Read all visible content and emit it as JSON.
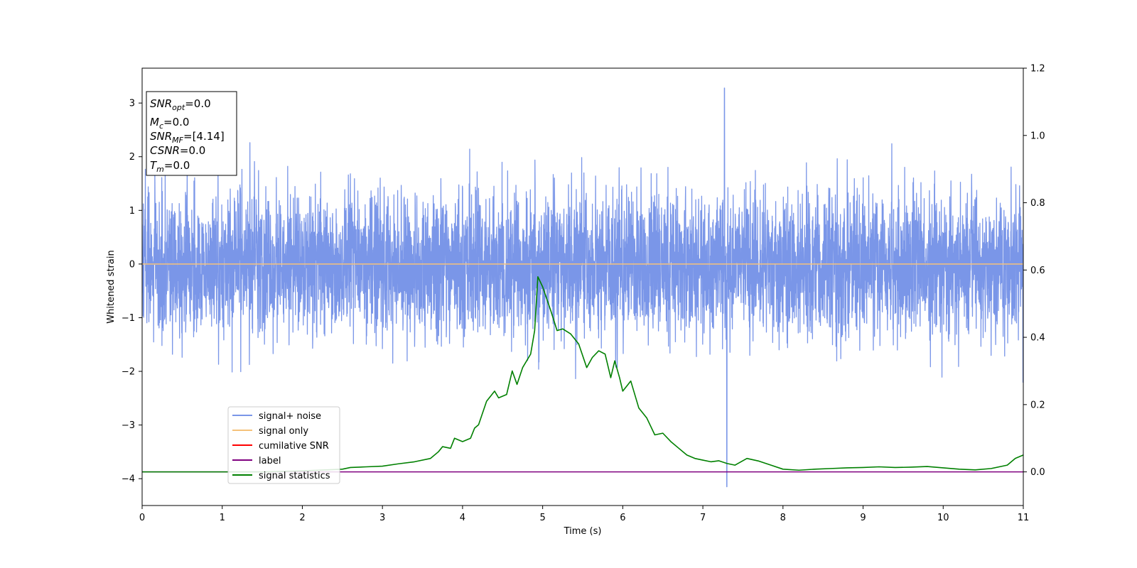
{
  "chart_data": {
    "type": "line",
    "xlabel": "Time (s)",
    "ylabel": "Whitened strain",
    "xlim": [
      0,
      11
    ],
    "ylim": [
      -4.5,
      3.65
    ],
    "y2lim": [
      -0.1,
      1.2
    ],
    "x_ticks": [
      "0",
      "1",
      "2",
      "3",
      "4",
      "5",
      "6",
      "7",
      "8",
      "9",
      "10",
      "11"
    ],
    "y_ticks": [
      "−4",
      "−3",
      "−2",
      "−1",
      "0",
      "1",
      "2",
      "3"
    ],
    "y2_ticks": [
      "0.0",
      "0.2",
      "0.4",
      "0.6",
      "0.8",
      "1.0",
      "1.2"
    ],
    "info_box": {
      "snr_opt": {
        "main": "SNR",
        "sub": "opt",
        "value": "=0.0"
      },
      "mc": {
        "main": "M",
        "sub": "c",
        "value": "=0.0"
      },
      "snr_mf": {
        "main": "SNR",
        "sub": "MF",
        "value": "=[4.14]"
      },
      "csnr": {
        "main": "CSNR",
        "value": "=0.0"
      },
      "tm": {
        "main": "T",
        "sub": "m",
        "value": "=0.0"
      }
    },
    "legend_position": "lower-left",
    "series": [
      {
        "name": "signal+ noise",
        "axis": "left",
        "color": "#7a96e8",
        "description": "dense whitened noise trace, roughly ±1.7 typical amplitude",
        "envelope": {
          "typical_top": 1.7,
          "typical_bottom": -1.7,
          "max": 3.28,
          "min": -4.15
        },
        "max_at": 7.27,
        "min_at": 7.3
      },
      {
        "name": "signal only",
        "axis": "left",
        "color": "#f5c27a",
        "x": [
          0,
          11
        ],
        "y": [
          0,
          0
        ]
      },
      {
        "name": "cumilative SNR",
        "axis": "left",
        "color": "#ff0000",
        "x": [],
        "y": []
      },
      {
        "name": "label",
        "axis": "right",
        "color": "#800080",
        "x": [
          0,
          11
        ],
        "y": [
          0,
          0
        ]
      },
      {
        "name": "signal statistics",
        "axis": "right",
        "color": "#008000",
        "x": [
          0,
          0.5,
          1,
          1.5,
          2,
          2.5,
          2.6,
          2.8,
          3.0,
          3.2,
          3.4,
          3.6,
          3.7,
          3.75,
          3.85,
          3.9,
          4.0,
          4.1,
          4.15,
          4.2,
          4.3,
          4.4,
          4.45,
          4.55,
          4.62,
          4.68,
          4.75,
          4.85,
          4.9,
          4.94,
          5.0,
          5.1,
          5.18,
          5.25,
          5.35,
          5.45,
          5.55,
          5.62,
          5.7,
          5.78,
          5.85,
          5.9,
          5.96,
          6.0,
          6.1,
          6.2,
          6.3,
          6.4,
          6.5,
          6.6,
          6.7,
          6.8,
          6.9,
          7.0,
          7.1,
          7.2,
          7.3,
          7.4,
          7.55,
          7.7,
          7.85,
          8.0,
          8.2,
          8.4,
          8.6,
          8.8,
          9.0,
          9.2,
          9.4,
          9.6,
          9.8,
          10.0,
          10.2,
          10.4,
          10.6,
          10.8,
          10.9,
          11.0
        ],
        "y": [
          0.0,
          0.0,
          0.0,
          0.0,
          0.003,
          0.008,
          0.013,
          0.015,
          0.017,
          0.024,
          0.03,
          0.04,
          0.06,
          0.075,
          0.07,
          0.1,
          0.09,
          0.1,
          0.13,
          0.14,
          0.21,
          0.24,
          0.22,
          0.23,
          0.3,
          0.26,
          0.31,
          0.35,
          0.42,
          0.58,
          0.55,
          0.48,
          0.42,
          0.425,
          0.41,
          0.38,
          0.31,
          0.34,
          0.36,
          0.35,
          0.28,
          0.33,
          0.28,
          0.24,
          0.27,
          0.19,
          0.16,
          0.11,
          0.115,
          0.09,
          0.07,
          0.05,
          0.04,
          0.035,
          0.03,
          0.033,
          0.025,
          0.02,
          0.04,
          0.032,
          0.02,
          0.008,
          0.005,
          0.008,
          0.01,
          0.012,
          0.013,
          0.015,
          0.013,
          0.014,
          0.016,
          0.012,
          0.008,
          0.006,
          0.01,
          0.02,
          0.04,
          0.05
        ]
      }
    ]
  }
}
